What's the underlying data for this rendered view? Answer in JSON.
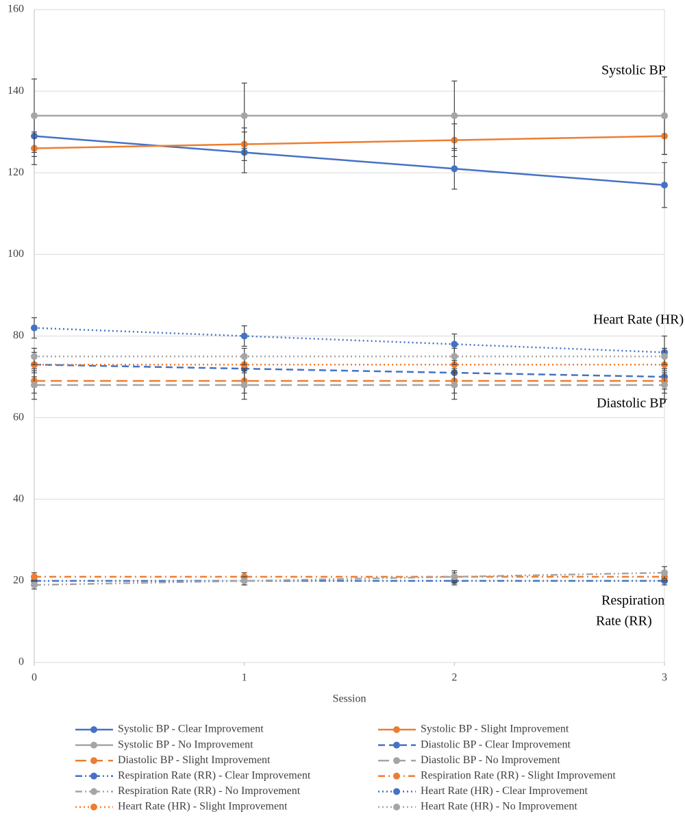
{
  "chart_data": {
    "type": "line",
    "x": [
      0,
      1,
      2,
      3
    ],
    "xlim": [
      0,
      3
    ],
    "xticks": [
      0,
      1,
      2,
      3
    ],
    "ylim": [
      0,
      160
    ],
    "yticks": [
      0,
      20,
      40,
      60,
      80,
      100,
      120,
      140,
      160
    ],
    "x_label": "Session",
    "grid": true,
    "legend": "bottom",
    "annotations": [
      {
        "lines": [
          "Systolic BP"
        ]
      },
      {
        "lines": [
          "Heart Rate (HR)"
        ]
      },
      {
        "lines": [
          "Diastolic BP"
        ]
      },
      {
        "lines": [
          "Respiration",
          "Rate (RR)"
        ]
      }
    ],
    "series": [
      {
        "name": "Systolic BP - Clear Improvement",
        "color": "#4472c4",
        "line_style": "solid",
        "values": [
          129,
          125,
          121,
          117
        ],
        "errors": [
          5,
          5,
          5,
          5.5
        ]
      },
      {
        "name": "Systolic BP - Slight Improvement",
        "color": "#ed7d31",
        "line_style": "solid",
        "values": [
          126,
          127,
          128,
          129
        ],
        "errors": [
          4,
          4,
          4,
          4.5
        ]
      },
      {
        "name": "Systolic BP - No Improvement",
        "color": "#a5a5a5",
        "line_style": "solid",
        "values": [
          134,
          134,
          134,
          134
        ],
        "errors": [
          9,
          8,
          8.5,
          9.5
        ]
      },
      {
        "name": "Diastolic BP - Clear Improvement",
        "color": "#4472c4",
        "line_style": "dashed",
        "values": [
          73,
          72,
          71,
          70
        ],
        "errors": [
          3,
          3,
          3,
          3
        ]
      },
      {
        "name": "Diastolic BP - Slight Improvement",
        "color": "#ed7d31",
        "line_style": "longdash",
        "values": [
          69,
          69,
          69,
          69
        ],
        "errors": [
          3,
          3,
          3,
          3
        ]
      },
      {
        "name": "Diastolic BP - No Improvement",
        "color": "#a5a5a5",
        "line_style": "longdash",
        "values": [
          68,
          68,
          68,
          68
        ],
        "errors": [
          3.5,
          3.5,
          3.5,
          3.5
        ]
      },
      {
        "name": "Respiration Rate (RR) - Clear Improvement",
        "color": "#4472c4",
        "line_style": "dashdotdot",
        "values": [
          20,
          20,
          20,
          20
        ],
        "errors": [
          1,
          1,
          1,
          1
        ]
      },
      {
        "name": "Respiration Rate (RR) - Slight Improvement",
        "color": "#ed7d31",
        "line_style": "dashdot",
        "values": [
          21,
          21,
          21,
          21
        ],
        "errors": [
          1,
          1,
          1,
          1
        ]
      },
      {
        "name": "Respiration Rate (RR) - No Improvement",
        "color": "#a5a5a5",
        "line_style": "dashdotdot",
        "values": [
          19,
          20,
          21,
          22
        ],
        "errors": [
          1,
          1,
          1.5,
          1.5
        ]
      },
      {
        "name": "Heart Rate (HR) - Clear Improvement",
        "color": "#4472c4",
        "line_style": "dotted",
        "values": [
          82,
          80,
          78,
          76
        ],
        "errors": [
          2.5,
          2.5,
          2.5,
          4
        ]
      },
      {
        "name": "Heart Rate (HR) - Slight Improvement",
        "color": "#ed7d31",
        "line_style": "dotted",
        "values": [
          73,
          73,
          73,
          73
        ],
        "errors": [
          2,
          2,
          2,
          2
        ]
      },
      {
        "name": "Heart Rate (HR) - No Improvement",
        "color": "#a5a5a5",
        "line_style": "dotted",
        "values": [
          75,
          75,
          75,
          75
        ],
        "errors": [
          2,
          2,
          2,
          2
        ]
      }
    ]
  }
}
